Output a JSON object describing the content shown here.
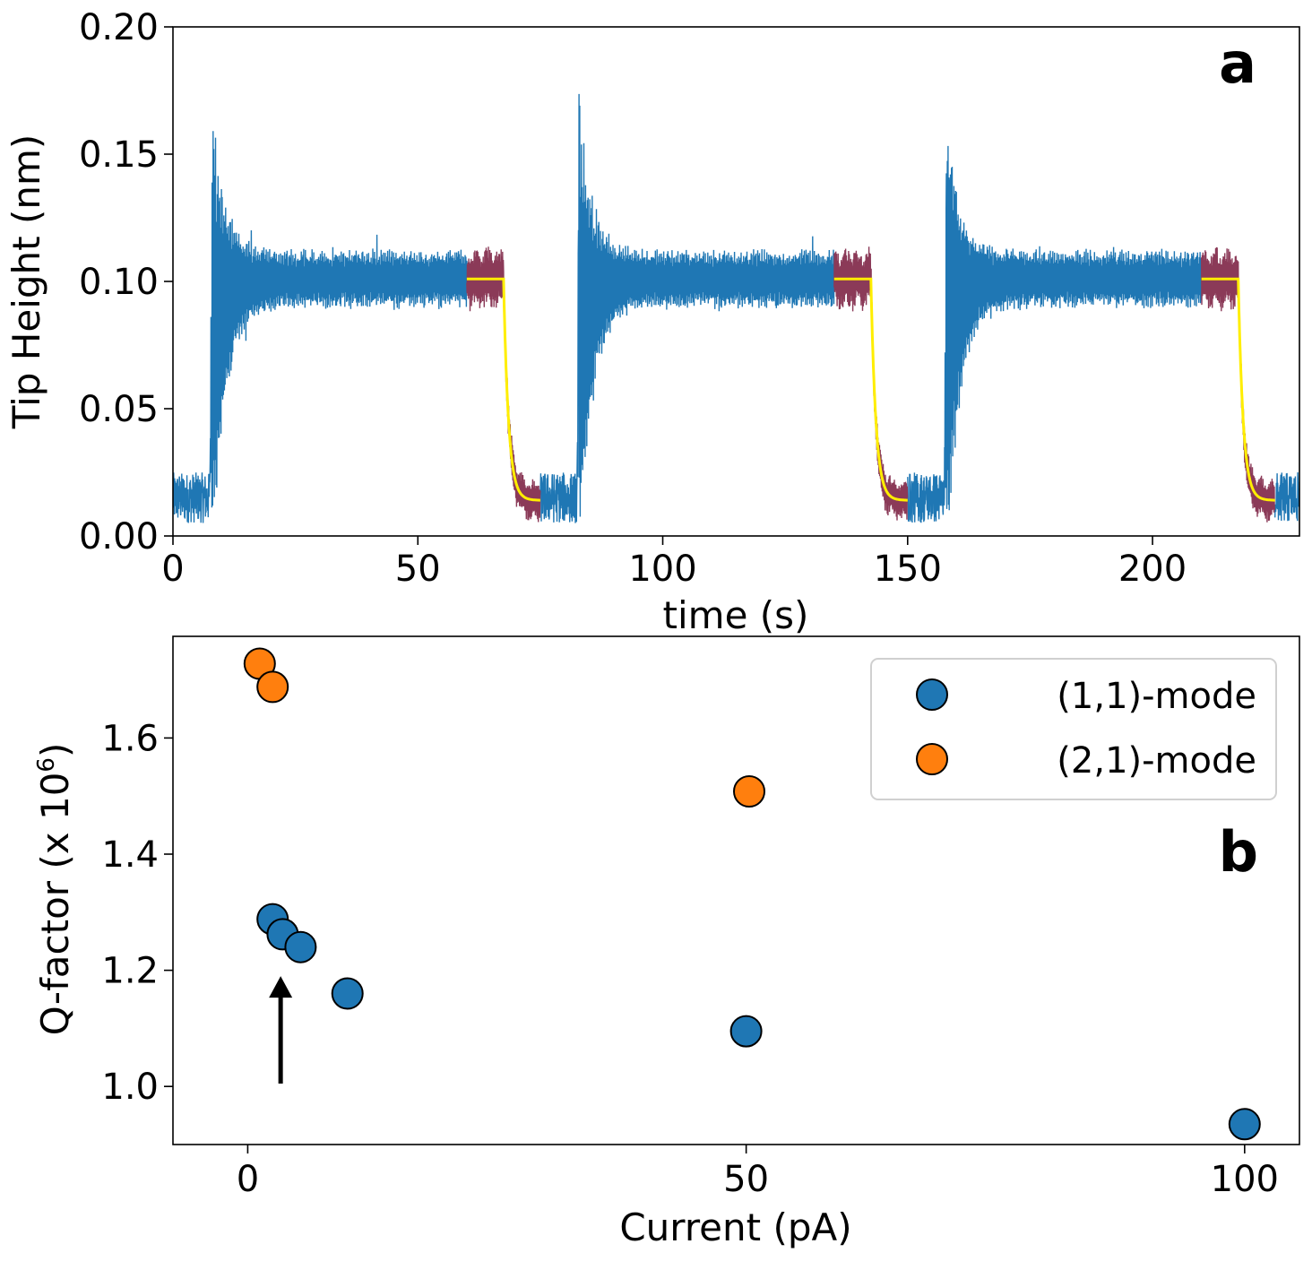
{
  "chart_data": [
    {
      "type": "line",
      "panel_label": "a",
      "xlabel": "time (s)",
      "ylabel": "Tip Height (nm)",
      "xlim": [
        0,
        230
      ],
      "ylim": [
        0,
        0.2
      ],
      "xticks": [
        "0",
        "50",
        "100",
        "150",
        "200"
      ],
      "yticks": [
        "0.00",
        "0.05",
        "0.10",
        "0.15",
        "0.20"
      ],
      "grid": false,
      "cycles": [
        {
          "rise_time": 7.5,
          "peak": 0.175,
          "plateau_end": 60,
          "drop_time": 67.5,
          "segment_end": 75
        },
        {
          "rise_time": 82.5,
          "peak": 0.178,
          "plateau_end": 135,
          "drop_time": 142.5,
          "segment_end": 150
        },
        {
          "rise_time": 157.5,
          "peak": 0.177,
          "plateau_end": 210,
          "drop_time": 217.5,
          "segment_end": 225
        }
      ],
      "baseline": 0.015,
      "plateau": 0.101,
      "fit_floor": 0.014,
      "series": [
        {
          "color": "#1f77b4"
        },
        {
          "color": "#8b3a58"
        },
        {
          "color": "#ffee00"
        }
      ]
    },
    {
      "type": "scatter",
      "panel_label": "b",
      "xlabel": "Current (pA)",
      "ylabel_main": "Q-factor (x 10",
      "ylabel_sup": "6",
      "ylabel_close": ")",
      "xlim": [
        -7.5,
        105.5
      ],
      "ylim": [
        0.9,
        1.775
      ],
      "xticks": [
        "0",
        "50",
        "100"
      ],
      "yticks": [
        "1.0",
        "1.2",
        "1.4",
        "1.6"
      ],
      "grid": false,
      "legend_position": "top-right",
      "series": [
        {
          "name": "(1,1)-mode",
          "color": "#1f77b4",
          "points": [
            [
              2.5,
              1.288
            ],
            [
              3.5,
              1.262
            ],
            [
              5.3,
              1.24
            ],
            [
              10,
              1.16
            ],
            [
              50,
              1.095
            ],
            [
              100,
              0.935
            ]
          ]
        },
        {
          "name": "(2,1)-mode",
          "color": "#ff7f0e",
          "points": [
            [
              1.2,
              1.728
            ],
            [
              2.5,
              1.688
            ],
            [
              50.3,
              1.508
            ]
          ]
        }
      ],
      "annotation": {
        "type": "arrow",
        "x": 3.3,
        "y_from": 1.005,
        "y_to": 1.19
      }
    }
  ]
}
